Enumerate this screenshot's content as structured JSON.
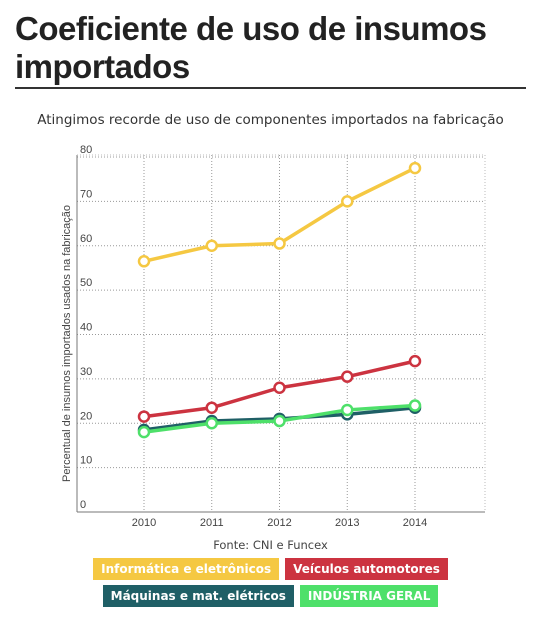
{
  "header": {
    "title": "Coeficiente de uso de insumos importados"
  },
  "chart_data": {
    "type": "line",
    "title": "Atingimos recorde de uso de componentes importados na fabricação",
    "xlabel": "",
    "ylabel": "Percentual de insumos importados usados na fabricação",
    "x": [
      "2010",
      "2011",
      "2012",
      "2013",
      "2014"
    ],
    "ylim": [
      0,
      80
    ],
    "yticks": [
      "0",
      "10",
      "20",
      "30",
      "40",
      "50",
      "60",
      "70",
      "80"
    ],
    "grid": true,
    "series": [
      {
        "name": "Informática e eletrônicos",
        "color": "#f5c842",
        "values": [
          56.5,
          60.0,
          60.5,
          70.0,
          77.5
        ]
      },
      {
        "name": "Veículos automotores",
        "color": "#cc3340",
        "values": [
          21.5,
          23.5,
          28.0,
          30.5,
          34.0
        ]
      },
      {
        "name": "Máquinas e mat. elétricos",
        "color": "#1f5f66",
        "values": [
          18.5,
          20.5,
          21.0,
          22.0,
          23.5
        ]
      },
      {
        "name": "INDÚSTRIA GERAL",
        "color": "#4ee06a",
        "values": [
          18.0,
          20.0,
          20.5,
          23.0,
          24.0
        ]
      }
    ],
    "source": "Fonte: CNI e Funcex"
  }
}
